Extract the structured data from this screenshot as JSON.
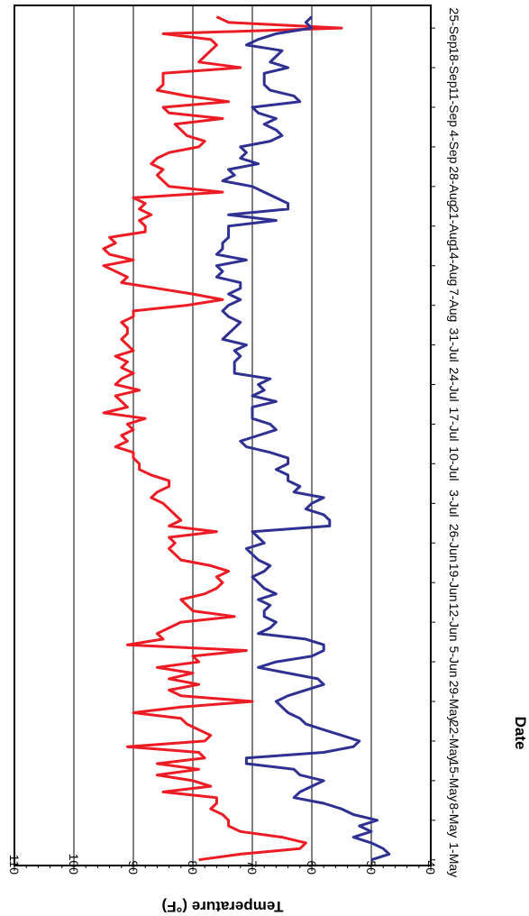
{
  "chart_data": {
    "type": "line",
    "ylabel": "Temperature (°F)",
    "xlabel": "Date",
    "ylim": [
      40,
      110
    ],
    "y_ticks": [
      "40",
      "50",
      "60",
      "70",
      "80",
      "90",
      "100",
      "110"
    ],
    "x_tick_labels": [
      "1-May",
      "8-May",
      "15-May",
      "22-May",
      "29-May",
      "5-Jun",
      "12-Jun",
      "19-Jun",
      "26-Jun",
      "3-Jul",
      "10-Jul",
      "17-Jul",
      "24-Jul",
      "31-Jul",
      "7-Aug",
      "14-Aug",
      "21-Aug",
      "28-Aug",
      "4-Sep",
      "11-Sep",
      "18-Sep",
      "25-Sep"
    ],
    "x_tick_values": [
      1,
      8,
      15,
      22,
      29,
      36,
      43,
      50,
      57,
      64,
      71,
      78,
      85,
      92,
      99,
      106,
      113,
      120,
      127,
      134,
      141,
      148
    ],
    "x_range": [
      0,
      152
    ],
    "grid": "major y gridlines",
    "orientation": "rotated 90 degrees clockwise",
    "series": [
      {
        "color": "#ed1c24",
        "x": [
          1,
          2,
          3,
          4,
          5,
          6,
          7,
          8,
          9,
          10,
          11,
          12,
          13,
          14,
          15,
          16,
          17,
          18,
          19,
          20,
          21,
          22,
          23,
          24,
          25,
          26,
          27,
          28,
          29,
          30,
          31,
          32,
          33,
          34,
          35,
          36,
          37,
          38,
          39,
          40,
          41,
          42,
          43,
          44,
          45,
          46,
          47,
          48,
          49,
          50,
          51,
          52,
          53,
          54,
          55,
          56,
          57,
          58,
          59,
          60,
          61,
          62,
          63,
          64,
          65,
          66,
          67,
          68,
          69,
          70,
          71,
          72,
          73,
          74,
          75,
          76,
          77,
          78,
          79,
          80,
          81,
          82,
          83,
          84,
          85,
          86,
          87,
          88,
          89,
          90,
          91,
          92,
          93,
          94,
          95,
          96,
          97,
          98,
          99,
          100,
          101,
          102,
          103,
          104,
          105,
          106,
          107,
          108,
          109,
          110,
          111,
          112,
          113,
          114,
          115,
          116,
          117,
          118,
          119,
          120,
          121,
          122,
          123,
          124,
          125,
          126,
          127,
          128,
          129,
          130,
          131,
          132,
          133,
          134,
          135,
          136,
          137,
          138,
          139,
          140,
          141,
          142,
          143,
          144,
          145,
          146,
          147,
          148,
          149,
          150
        ],
        "values": [
          79,
          72,
          62,
          61,
          65,
          72,
          74,
          74,
          75,
          77,
          76,
          76,
          85,
          77,
          80,
          86,
          79,
          86,
          78,
          79,
          91,
          78,
          77,
          79,
          81,
          82,
          90,
          82,
          70,
          82,
          84,
          79,
          84,
          80,
          86,
          79,
          80,
          71,
          91,
          85,
          86,
          84,
          82,
          73,
          80,
          81,
          82,
          78,
          76,
          75,
          76,
          74,
          77,
          82,
          83,
          84,
          83,
          84,
          76,
          84,
          82,
          83,
          84,
          85,
          87,
          86,
          84,
          84,
          87,
          89,
          89,
          90,
          90,
          93,
          91,
          92,
          90,
          91,
          88,
          95,
          91,
          92,
          93,
          89,
          93,
          92,
          90,
          92,
          91,
          93,
          90,
          91,
          92,
          91,
          91,
          92,
          90,
          90,
          81,
          75,
          80,
          86,
          92,
          91,
          93,
          95,
          90,
          94,
          95,
          93,
          94,
          88,
          88,
          89,
          87,
          89,
          88,
          90,
          75,
          84,
          85,
          86,
          85,
          87,
          86,
          84,
          79,
          78,
          81,
          82,
          83,
          75,
          84,
          85,
          74,
          81,
          86,
          85,
          85,
          85,
          72,
          79,
          78,
          77,
          76,
          77,
          85,
          55,
          74,
          76
        ]
      },
      {
        "color": "#2e3192",
        "x": [
          1,
          2,
          3,
          4,
          5,
          6,
          7,
          8,
          9,
          10,
          11,
          12,
          13,
          14,
          15,
          16,
          17,
          18,
          19,
          20,
          21,
          22,
          23,
          24,
          25,
          26,
          27,
          28,
          29,
          30,
          31,
          32,
          33,
          34,
          35,
          36,
          37,
          38,
          39,
          40,
          41,
          42,
          43,
          44,
          45,
          46,
          47,
          48,
          49,
          50,
          51,
          52,
          53,
          54,
          55,
          56,
          57,
          58,
          59,
          60,
          61,
          62,
          63,
          64,
          65,
          66,
          67,
          68,
          69,
          70,
          71,
          72,
          73,
          74,
          75,
          76,
          77,
          78,
          79,
          80,
          81,
          82,
          83,
          84,
          85,
          86,
          87,
          88,
          89,
          90,
          91,
          92,
          93,
          94,
          95,
          96,
          97,
          98,
          99,
          100,
          101,
          102,
          103,
          104,
          105,
          106,
          107,
          108,
          109,
          110,
          111,
          112,
          113,
          114,
          115,
          116,
          117,
          118,
          119,
          120,
          121,
          122,
          123,
          124,
          125,
          126,
          127,
          128,
          129,
          130,
          131,
          132,
          133,
          134,
          135,
          136,
          137,
          138,
          139,
          140,
          141,
          142,
          143,
          144,
          145,
          146,
          147,
          148,
          149,
          150
        ],
        "values": [
          50,
          47,
          48,
          50,
          53,
          50,
          52,
          49,
          53,
          55,
          58,
          63,
          62,
          60,
          58,
          62,
          63,
          71,
          71,
          58,
          53,
          52,
          55,
          58,
          61,
          62,
          64,
          65,
          66,
          64,
          61,
          58,
          59,
          64,
          69,
          66,
          60,
          58,
          58,
          61,
          69,
          67,
          66,
          68,
          68,
          67,
          69,
          66,
          68,
          69,
          70,
          68,
          67,
          69,
          70,
          71,
          68,
          69,
          70,
          57,
          57,
          58,
          61,
          60,
          58,
          63,
          62,
          64,
          64,
          66,
          64,
          64,
          67,
          71,
          72,
          69,
          66,
          67,
          70,
          70,
          70,
          66,
          70,
          68,
          69,
          67,
          73,
          73,
          73,
          72,
          73,
          71,
          75,
          74,
          73,
          72,
          74,
          75,
          74,
          72,
          74,
          72,
          72,
          76,
          75,
          76,
          71,
          76,
          75,
          75,
          74,
          74,
          74,
          66,
          74,
          64,
          64,
          66,
          68,
          70,
          75,
          73,
          74,
          69,
          72,
          71,
          72,
          67,
          65,
          66,
          68,
          66,
          69,
          70,
          62,
          63,
          67,
          68,
          68,
          68,
          64,
          67,
          66,
          65,
          71,
          69,
          66,
          60,
          61,
          60
        ]
      }
    ]
  }
}
